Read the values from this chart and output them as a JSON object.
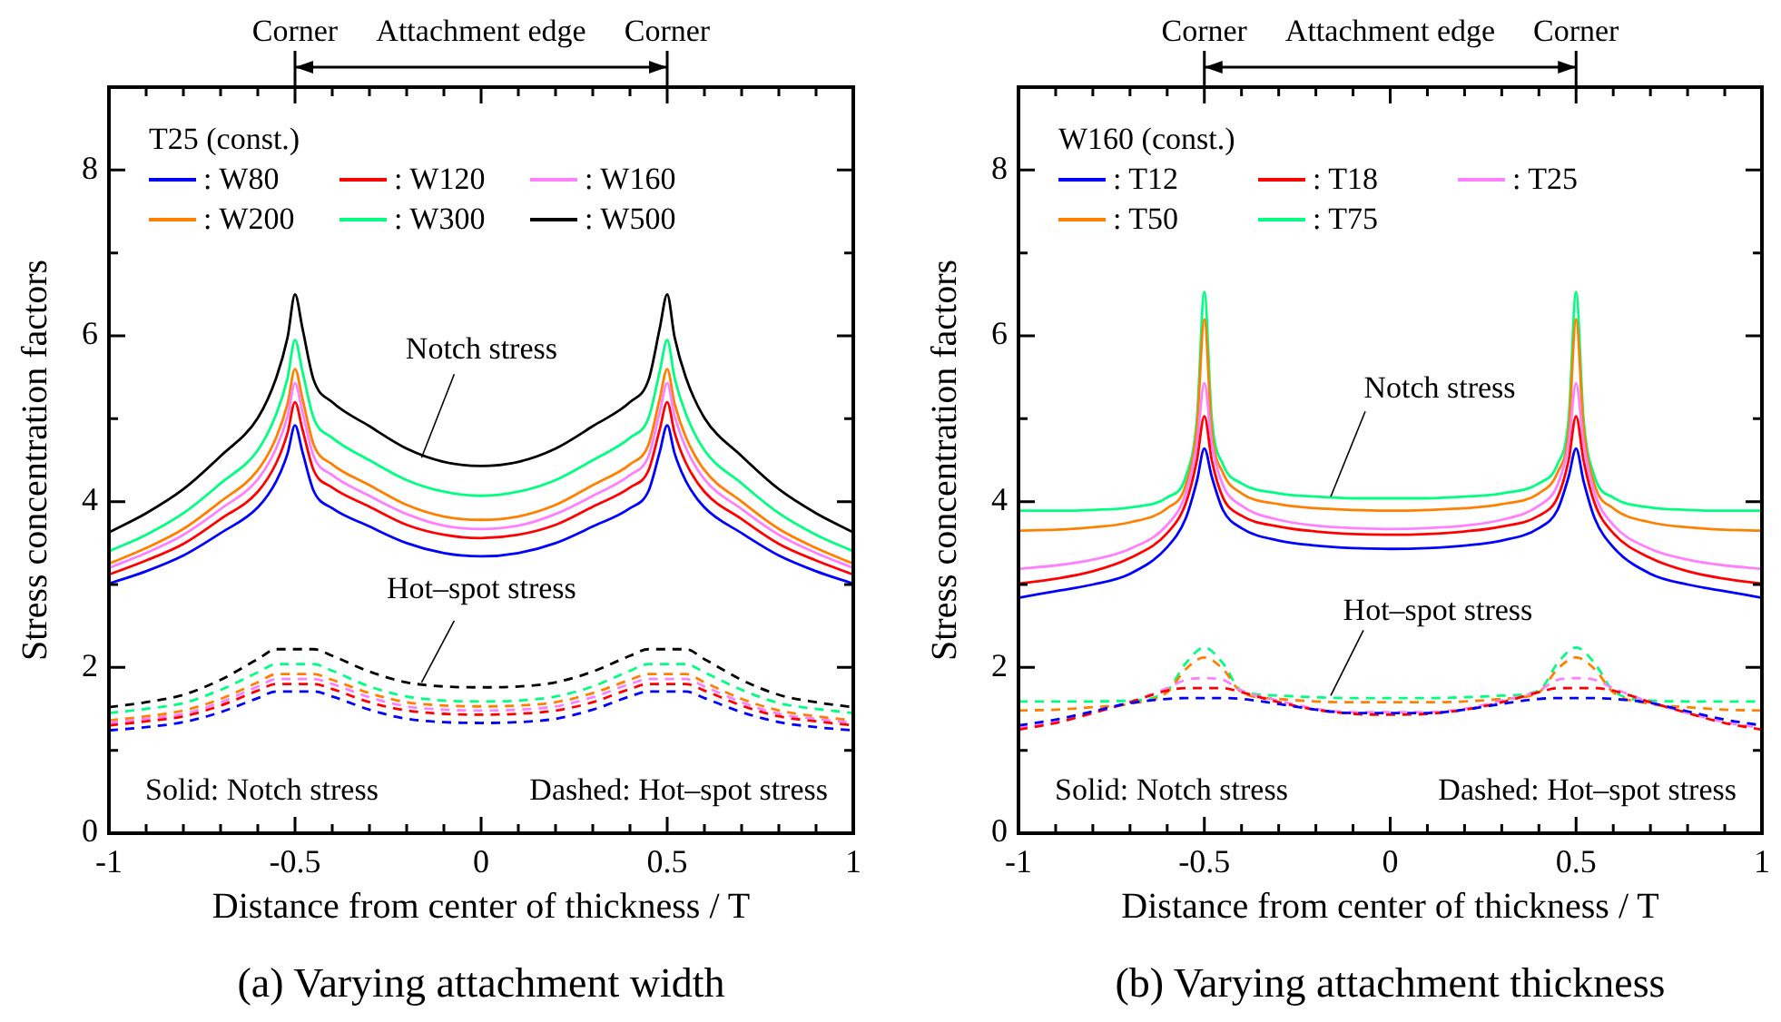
{
  "chart_data": [
    {
      "type": "line",
      "title": "(a) Varying attachment width",
      "xlabel": "Distance from center of thickness / T",
      "ylabel": "Stress concentration factors",
      "legend_title": "T25 (const.)",
      "legend": "top left",
      "marker": "none",
      "xlim": [
        -1,
        1
      ],
      "xticks": [
        -1,
        {
          "value": -0.9,
          "label": null
        },
        {
          "value": -0.8,
          "label": null
        },
        {
          "value": -0.7,
          "label": null
        },
        {
          "value": -0.6,
          "label": null
        },
        -0.5,
        {
          "value": -0.4,
          "label": null
        },
        {
          "value": -0.3,
          "label": null
        },
        {
          "value": -0.2,
          "label": null
        },
        {
          "value": -0.1,
          "label": null
        },
        0,
        {
          "value": 0.1,
          "label": null
        },
        {
          "value": 0.2,
          "label": null
        },
        {
          "value": 0.3,
          "label": null
        },
        {
          "value": 0.4,
          "label": null
        },
        0.5,
        {
          "value": 0.6,
          "label": null
        },
        {
          "value": 0.7,
          "label": null
        },
        {
          "value": 0.8,
          "label": null
        },
        {
          "value": 0.9,
          "label": null
        },
        1
      ],
      "ylim": [
        0,
        9
      ],
      "yticks": [
        0,
        {
          "value": 1,
          "label": null
        },
        2,
        {
          "value": 3,
          "label": null
        },
        4,
        {
          "value": 5,
          "label": null
        },
        6,
        {
          "value": 7,
          "label": null
        },
        8,
        {
          "value": 9,
          "label": null
        }
      ],
      "annotations": [
        {
          "text": "Corner",
          "x": -0.5
        },
        "Attachment edge",
        {
          "text": "Corner",
          "x": 0.5
        },
        {
          "text": "Notch stress",
          "x": -0.16,
          "y": 4.53
        },
        {
          "text": "Hot–spot stress",
          "x": -0.16,
          "y": 1.82
        },
        "Solid: Notch stress",
        "Dashed: Hot–spot stress"
      ],
      "series": [
        {
          "name": ": W80",
          "color": "#0000ff",
          "line_style": "solid",
          "x": [
            -1,
            -0.9,
            -0.8,
            -0.7,
            -0.6,
            -0.55,
            -0.52,
            -0.5,
            -0.48,
            -0.45,
            -0.4,
            -0.3,
            -0.2,
            -0.1,
            0,
            0.1,
            0.2,
            0.3,
            0.4,
            0.45,
            0.48,
            0.5,
            0.52,
            0.55,
            0.6,
            0.7,
            0.8,
            0.9,
            1
          ],
          "values": [
            3.01,
            3.16,
            3.35,
            3.62,
            3.93,
            4.25,
            4.58,
            4.92,
            4.6,
            4.13,
            3.92,
            3.7,
            3.5,
            3.38,
            3.34,
            3.38,
            3.5,
            3.7,
            3.92,
            4.13,
            4.6,
            4.92,
            4.58,
            4.25,
            3.93,
            3.62,
            3.35,
            3.16,
            3.01
          ]
        },
        {
          "name": ": W120",
          "color": "#ff0000",
          "line_style": "solid",
          "x": [
            -1,
            -0.9,
            -0.8,
            -0.7,
            -0.6,
            -0.55,
            -0.52,
            -0.5,
            -0.48,
            -0.45,
            -0.4,
            -0.3,
            -0.2,
            -0.1,
            0,
            0.1,
            0.2,
            0.3,
            0.4,
            0.45,
            0.48,
            0.5,
            0.52,
            0.55,
            0.6,
            0.7,
            0.8,
            0.9,
            1
          ],
          "values": [
            3.12,
            3.29,
            3.49,
            3.79,
            4.12,
            4.47,
            4.83,
            5.2,
            4.87,
            4.38,
            4.17,
            3.94,
            3.72,
            3.6,
            3.56,
            3.6,
            3.72,
            3.94,
            4.17,
            4.38,
            4.87,
            5.2,
            4.83,
            4.47,
            4.12,
            3.79,
            3.49,
            3.29,
            3.12
          ]
        },
        {
          "name": ": W160",
          "color": "#ff80ff",
          "line_style": "solid",
          "x": [
            -1,
            -0.9,
            -0.8,
            -0.7,
            -0.6,
            -0.55,
            -0.52,
            -0.5,
            -0.48,
            -0.45,
            -0.4,
            -0.3,
            -0.2,
            -0.1,
            0,
            0.1,
            0.2,
            0.3,
            0.4,
            0.45,
            0.48,
            0.5,
            0.52,
            0.55,
            0.6,
            0.7,
            0.8,
            0.9,
            1
          ],
          "values": [
            3.2,
            3.38,
            3.6,
            3.91,
            4.27,
            4.65,
            5.03,
            5.43,
            5.08,
            4.55,
            4.32,
            4.07,
            3.85,
            3.71,
            3.67,
            3.71,
            3.85,
            4.07,
            4.32,
            4.55,
            5.08,
            5.43,
            5.03,
            4.65,
            4.27,
            3.91,
            3.6,
            3.38,
            3.2
          ]
        },
        {
          "name": ": W200",
          "color": "#ff8000",
          "line_style": "solid",
          "x": [
            -1,
            -0.9,
            -0.8,
            -0.7,
            -0.6,
            -0.55,
            -0.52,
            -0.5,
            -0.48,
            -0.45,
            -0.4,
            -0.3,
            -0.2,
            -0.1,
            0,
            0.1,
            0.2,
            0.3,
            0.4,
            0.45,
            0.48,
            0.5,
            0.52,
            0.55,
            0.6,
            0.7,
            0.8,
            0.9,
            1
          ],
          "values": [
            3.25,
            3.44,
            3.67,
            4.0,
            4.38,
            4.78,
            5.18,
            5.6,
            5.24,
            4.69,
            4.45,
            4.2,
            3.96,
            3.82,
            3.78,
            3.82,
            3.96,
            4.2,
            4.45,
            4.69,
            5.24,
            5.6,
            5.18,
            4.78,
            4.38,
            4.0,
            3.67,
            3.44,
            3.25
          ]
        },
        {
          "name": ": W300",
          "color": "#00ff80",
          "line_style": "solid",
          "x": [
            -1,
            -0.9,
            -0.8,
            -0.7,
            -0.6,
            -0.55,
            -0.52,
            -0.5,
            -0.48,
            -0.45,
            -0.4,
            -0.3,
            -0.2,
            -0.1,
            0,
            0.1,
            0.2,
            0.3,
            0.4,
            0.45,
            0.48,
            0.5,
            0.52,
            0.55,
            0.6,
            0.7,
            0.8,
            0.9,
            1
          ],
          "values": [
            3.4,
            3.6,
            3.86,
            4.22,
            4.62,
            5.06,
            5.49,
            5.95,
            5.57,
            5.01,
            4.77,
            4.5,
            4.26,
            4.12,
            4.07,
            4.12,
            4.26,
            4.5,
            4.77,
            5.01,
            5.57,
            5.95,
            5.49,
            5.06,
            4.62,
            4.22,
            3.86,
            3.6,
            3.4
          ]
        },
        {
          "name": ": W500",
          "color": "#000000",
          "line_style": "solid",
          "x": [
            -1,
            -0.9,
            -0.8,
            -0.7,
            -0.6,
            -0.55,
            -0.52,
            -0.5,
            -0.48,
            -0.45,
            -0.4,
            -0.3,
            -0.2,
            -0.1,
            0,
            0.1,
            0.2,
            0.3,
            0.4,
            0.45,
            0.48,
            0.5,
            0.52,
            0.55,
            0.6,
            0.7,
            0.8,
            0.9,
            1
          ],
          "values": [
            3.63,
            3.86,
            4.15,
            4.55,
            5.01,
            5.5,
            5.98,
            6.5,
            6.09,
            5.47,
            5.2,
            4.91,
            4.64,
            4.48,
            4.43,
            4.48,
            4.64,
            4.91,
            5.2,
            5.47,
            6.09,
            6.5,
            5.98,
            5.5,
            5.01,
            4.55,
            4.15,
            3.86,
            3.63
          ]
        },
        {
          "color": "#0000ff",
          "line_style": "dashed",
          "x": [
            -1,
            -0.9,
            -0.8,
            -0.7,
            -0.6,
            -0.55,
            -0.45,
            -0.4,
            -0.3,
            -0.2,
            -0.1,
            0,
            0.1,
            0.2,
            0.3,
            0.4,
            0.45,
            0.55,
            0.6,
            0.7,
            0.8,
            0.9,
            1
          ],
          "values": [
            1.24,
            1.28,
            1.34,
            1.46,
            1.63,
            1.71,
            1.71,
            1.65,
            1.49,
            1.38,
            1.34,
            1.33,
            1.34,
            1.38,
            1.49,
            1.65,
            1.71,
            1.71,
            1.63,
            1.46,
            1.34,
            1.28,
            1.24
          ]
        },
        {
          "color": "#ff0000",
          "line_style": "dashed",
          "x": [
            -1,
            -0.9,
            -0.8,
            -0.7,
            -0.6,
            -0.55,
            -0.45,
            -0.4,
            -0.3,
            -0.2,
            -0.1,
            0,
            0.1,
            0.2,
            0.3,
            0.4,
            0.45,
            0.55,
            0.6,
            0.7,
            0.8,
            0.9,
            1
          ],
          "values": [
            1.3,
            1.35,
            1.41,
            1.54,
            1.72,
            1.8,
            1.8,
            1.74,
            1.58,
            1.48,
            1.44,
            1.43,
            1.44,
            1.48,
            1.58,
            1.74,
            1.8,
            1.8,
            1.72,
            1.54,
            1.41,
            1.35,
            1.3
          ]
        },
        {
          "color": "#ff80ff",
          "line_style": "dashed",
          "x": [
            -1,
            -0.9,
            -0.8,
            -0.7,
            -0.6,
            -0.55,
            -0.45,
            -0.4,
            -0.3,
            -0.2,
            -0.1,
            0,
            0.1,
            0.2,
            0.3,
            0.4,
            0.45,
            0.55,
            0.6,
            0.7,
            0.8,
            0.9,
            1
          ],
          "values": [
            1.33,
            1.38,
            1.44,
            1.58,
            1.77,
            1.86,
            1.86,
            1.8,
            1.64,
            1.53,
            1.49,
            1.48,
            1.49,
            1.53,
            1.64,
            1.8,
            1.86,
            1.86,
            1.77,
            1.58,
            1.44,
            1.38,
            1.33
          ]
        },
        {
          "color": "#ff8000",
          "line_style": "dashed",
          "x": [
            -1,
            -0.9,
            -0.8,
            -0.7,
            -0.6,
            -0.55,
            -0.45,
            -0.4,
            -0.3,
            -0.2,
            -0.1,
            0,
            0.1,
            0.2,
            0.3,
            0.4,
            0.45,
            0.55,
            0.6,
            0.7,
            0.8,
            0.9,
            1
          ],
          "values": [
            1.36,
            1.41,
            1.48,
            1.62,
            1.82,
            1.92,
            1.92,
            1.85,
            1.69,
            1.58,
            1.54,
            1.53,
            1.54,
            1.58,
            1.69,
            1.85,
            1.92,
            1.92,
            1.82,
            1.62,
            1.48,
            1.41,
            1.36
          ]
        },
        {
          "color": "#00ff80",
          "line_style": "dashed",
          "x": [
            -1,
            -0.9,
            -0.8,
            -0.7,
            -0.6,
            -0.55,
            -0.45,
            -0.4,
            -0.3,
            -0.2,
            -0.1,
            0,
            0.1,
            0.2,
            0.3,
            0.4,
            0.45,
            0.55,
            0.6,
            0.7,
            0.8,
            0.9,
            1
          ],
          "values": [
            1.45,
            1.5,
            1.57,
            1.73,
            1.94,
            2.04,
            2.04,
            1.96,
            1.77,
            1.65,
            1.6,
            1.59,
            1.6,
            1.65,
            1.77,
            1.96,
            2.04,
            2.04,
            1.94,
            1.73,
            1.57,
            1.5,
            1.45
          ]
        },
        {
          "color": "#000000",
          "line_style": "dashed",
          "x": [
            -1,
            -0.9,
            -0.8,
            -0.7,
            -0.6,
            -0.55,
            -0.45,
            -0.4,
            -0.3,
            -0.2,
            -0.1,
            0,
            0.1,
            0.2,
            0.3,
            0.4,
            0.45,
            0.55,
            0.6,
            0.7,
            0.8,
            0.9,
            1
          ],
          "values": [
            1.52,
            1.58,
            1.67,
            1.85,
            2.1,
            2.22,
            2.22,
            2.14,
            1.95,
            1.82,
            1.77,
            1.76,
            1.77,
            1.82,
            1.95,
            2.14,
            2.22,
            2.22,
            2.1,
            1.85,
            1.67,
            1.58,
            1.52
          ]
        }
      ]
    },
    {
      "type": "line",
      "title": "(b) Varying attachment thickness",
      "xlabel": "Distance from center of thickness / T",
      "ylabel": "Stress concentration factors",
      "legend_title": "W160 (const.)",
      "legend": "top left",
      "marker": "none",
      "xlim": [
        -1,
        1
      ],
      "xticks": [
        -1,
        {
          "value": -0.9,
          "label": null
        },
        {
          "value": -0.8,
          "label": null
        },
        {
          "value": -0.7,
          "label": null
        },
        {
          "value": -0.6,
          "label": null
        },
        -0.5,
        {
          "value": -0.4,
          "label": null
        },
        {
          "value": -0.3,
          "label": null
        },
        {
          "value": -0.2,
          "label": null
        },
        {
          "value": -0.1,
          "label": null
        },
        0,
        {
          "value": 0.1,
          "label": null
        },
        {
          "value": 0.2,
          "label": null
        },
        {
          "value": 0.3,
          "label": null
        },
        {
          "value": 0.4,
          "label": null
        },
        0.5,
        {
          "value": 0.6,
          "label": null
        },
        {
          "value": 0.7,
          "label": null
        },
        {
          "value": 0.8,
          "label": null
        },
        {
          "value": 0.9,
          "label": null
        },
        1
      ],
      "ylim": [
        0,
        9
      ],
      "yticks": [
        0,
        {
          "value": 1,
          "label": null
        },
        2,
        {
          "value": 3,
          "label": null
        },
        4,
        {
          "value": 5,
          "label": null
        },
        6,
        {
          "value": 7,
          "label": null
        },
        8,
        {
          "value": 9,
          "label": null
        }
      ],
      "annotations": [
        {
          "text": "Corner",
          "x": -0.5
        },
        "Attachment edge",
        {
          "text": "Corner",
          "x": 0.5
        },
        {
          "text": "Notch stress",
          "x": -0.16,
          "y": 4.06
        },
        {
          "text": "Hot–spot stress",
          "x": -0.16,
          "y": 1.66
        },
        "Solid: Notch stress",
        "Dashed: Hot–spot stress"
      ],
      "series": [
        {
          "name": ": T12",
          "color": "#0000ff",
          "line_style": "solid",
          "x": [
            -1,
            -0.9,
            -0.8,
            -0.7,
            -0.6,
            -0.55,
            -0.52,
            -0.5,
            -0.48,
            -0.45,
            -0.4,
            -0.3,
            -0.2,
            -0.1,
            0,
            0.1,
            0.2,
            0.3,
            0.4,
            0.45,
            0.48,
            0.5,
            0.52,
            0.55,
            0.6,
            0.7,
            0.8,
            0.9,
            1
          ],
          "values": [
            2.84,
            2.92,
            3.0,
            3.13,
            3.45,
            3.8,
            4.25,
            4.64,
            4.3,
            3.9,
            3.68,
            3.53,
            3.47,
            3.44,
            3.43,
            3.44,
            3.47,
            3.53,
            3.68,
            3.9,
            4.3,
            4.64,
            4.25,
            3.8,
            3.45,
            3.13,
            3.0,
            2.92,
            2.84
          ]
        },
        {
          "name": ": T18",
          "color": "#ff0000",
          "line_style": "solid",
          "x": [
            -1,
            -0.9,
            -0.8,
            -0.7,
            -0.6,
            -0.55,
            -0.52,
            -0.5,
            -0.48,
            -0.45,
            -0.4,
            -0.3,
            -0.2,
            -0.1,
            0,
            0.1,
            0.2,
            0.3,
            0.4,
            0.45,
            0.48,
            0.5,
            0.52,
            0.55,
            0.6,
            0.7,
            0.8,
            0.9,
            1
          ],
          "values": [
            3.01,
            3.07,
            3.16,
            3.32,
            3.62,
            3.98,
            4.5,
            5.03,
            4.5,
            4.05,
            3.83,
            3.7,
            3.64,
            3.61,
            3.6,
            3.61,
            3.64,
            3.7,
            3.83,
            4.05,
            4.5,
            5.03,
            4.5,
            3.98,
            3.62,
            3.32,
            3.16,
            3.07,
            3.01
          ]
        },
        {
          "name": ": T25",
          "color": "#ff80ff",
          "line_style": "solid",
          "x": [
            -1,
            -0.9,
            -0.8,
            -0.7,
            -0.6,
            -0.55,
            -0.52,
            -0.5,
            -0.48,
            -0.45,
            -0.4,
            -0.3,
            -0.2,
            -0.1,
            0,
            0.1,
            0.2,
            0.3,
            0.4,
            0.45,
            0.48,
            0.5,
            0.52,
            0.55,
            0.6,
            0.7,
            0.8,
            0.9,
            1
          ],
          "values": [
            3.19,
            3.23,
            3.3,
            3.43,
            3.72,
            4.1,
            4.7,
            5.43,
            4.7,
            4.2,
            3.95,
            3.78,
            3.71,
            3.68,
            3.67,
            3.68,
            3.71,
            3.78,
            3.95,
            4.2,
            4.7,
            5.43,
            4.7,
            4.1,
            3.72,
            3.43,
            3.3,
            3.23,
            3.19
          ]
        },
        {
          "name": ": T50",
          "color": "#ff8000",
          "line_style": "solid",
          "x": [
            -1,
            -0.9,
            -0.8,
            -0.7,
            -0.6,
            -0.55,
            -0.52,
            -0.5,
            -0.48,
            -0.45,
            -0.4,
            -0.3,
            -0.2,
            -0.1,
            0,
            0.1,
            0.2,
            0.3,
            0.4,
            0.45,
            0.48,
            0.5,
            0.52,
            0.55,
            0.6,
            0.7,
            0.8,
            0.9,
            1
          ],
          "values": [
            3.65,
            3.66,
            3.69,
            3.75,
            3.92,
            4.2,
            4.9,
            6.2,
            4.85,
            4.35,
            4.1,
            3.97,
            3.92,
            3.9,
            3.89,
            3.9,
            3.92,
            3.97,
            4.1,
            4.35,
            4.85,
            6.2,
            4.9,
            4.2,
            3.92,
            3.75,
            3.69,
            3.66,
            3.65
          ]
        },
        {
          "name": ": T75",
          "color": "#00ff80",
          "line_style": "solid",
          "x": [
            -1,
            -0.9,
            -0.8,
            -0.7,
            -0.6,
            -0.55,
            -0.52,
            -0.5,
            -0.48,
            -0.45,
            -0.4,
            -0.3,
            -0.2,
            -0.1,
            0,
            0.1,
            0.2,
            0.3,
            0.4,
            0.45,
            0.48,
            0.5,
            0.52,
            0.55,
            0.6,
            0.7,
            0.8,
            0.9,
            1
          ],
          "values": [
            3.89,
            3.89,
            3.9,
            3.93,
            4.05,
            4.3,
            5.0,
            6.53,
            5.0,
            4.45,
            4.22,
            4.1,
            4.06,
            4.04,
            4.04,
            4.04,
            4.06,
            4.1,
            4.22,
            4.45,
            5.0,
            6.53,
            5.0,
            4.3,
            4.05,
            3.93,
            3.9,
            3.89,
            3.89
          ]
        },
        {
          "color": "#0000ff",
          "line_style": "dashed",
          "x": [
            -1,
            -0.9,
            -0.8,
            -0.7,
            -0.6,
            -0.55,
            -0.5,
            -0.45,
            -0.4,
            -0.3,
            -0.2,
            -0.1,
            0,
            0.1,
            0.2,
            0.3,
            0.4,
            0.45,
            0.5,
            0.55,
            0.6,
            0.7,
            0.8,
            0.9,
            1
          ],
          "values": [
            1.3,
            1.37,
            1.47,
            1.57,
            1.62,
            1.63,
            1.63,
            1.63,
            1.62,
            1.56,
            1.49,
            1.45,
            1.45,
            1.45,
            1.49,
            1.56,
            1.62,
            1.63,
            1.63,
            1.63,
            1.62,
            1.57,
            1.47,
            1.37,
            1.3
          ]
        },
        {
          "color": "#ff0000",
          "line_style": "dashed",
          "x": [
            -1,
            -0.9,
            -0.8,
            -0.7,
            -0.6,
            -0.55,
            -0.5,
            -0.45,
            -0.4,
            -0.3,
            -0.2,
            -0.1,
            0,
            0.1,
            0.2,
            0.3,
            0.4,
            0.45,
            0.5,
            0.55,
            0.6,
            0.7,
            0.8,
            0.9,
            1
          ],
          "values": [
            1.25,
            1.33,
            1.45,
            1.58,
            1.72,
            1.75,
            1.75,
            1.75,
            1.7,
            1.58,
            1.49,
            1.44,
            1.43,
            1.44,
            1.49,
            1.58,
            1.7,
            1.75,
            1.75,
            1.75,
            1.72,
            1.58,
            1.45,
            1.33,
            1.25
          ]
        },
        {
          "color": "#ff80ff",
          "line_style": "dashed",
          "x": [
            -1,
            -0.9,
            -0.8,
            -0.7,
            -0.6,
            -0.55,
            -0.5,
            -0.45,
            -0.4,
            -0.3,
            -0.2,
            -0.1,
            0,
            0.1,
            0.2,
            0.3,
            0.4,
            0.45,
            0.5,
            0.55,
            0.6,
            0.7,
            0.8,
            0.9,
            1
          ],
          "values": [
            1.27,
            1.34,
            1.45,
            1.58,
            1.75,
            1.85,
            1.87,
            1.85,
            1.72,
            1.6,
            1.5,
            1.46,
            1.46,
            1.46,
            1.5,
            1.6,
            1.72,
            1.85,
            1.87,
            1.85,
            1.75,
            1.58,
            1.45,
            1.34,
            1.27
          ]
        },
        {
          "color": "#ff8000",
          "line_style": "dashed",
          "x": [
            -1,
            -0.9,
            -0.8,
            -0.7,
            -0.6,
            -0.55,
            -0.5,
            -0.45,
            -0.4,
            -0.3,
            -0.2,
            -0.1,
            0,
            0.1,
            0.2,
            0.3,
            0.4,
            0.45,
            0.5,
            0.55,
            0.6,
            0.7,
            0.8,
            0.9,
            1
          ],
          "values": [
            1.48,
            1.49,
            1.52,
            1.56,
            1.7,
            1.98,
            2.12,
            1.98,
            1.7,
            1.62,
            1.59,
            1.58,
            1.58,
            1.58,
            1.59,
            1.62,
            1.7,
            1.98,
            2.12,
            1.98,
            1.7,
            1.56,
            1.52,
            1.49,
            1.48
          ]
        },
        {
          "color": "#00ff80",
          "line_style": "dashed",
          "x": [
            -1,
            -0.9,
            -0.8,
            -0.7,
            -0.6,
            -0.55,
            -0.5,
            -0.45,
            -0.4,
            -0.3,
            -0.2,
            -0.1,
            0,
            0.1,
            0.2,
            0.3,
            0.4,
            0.45,
            0.5,
            0.55,
            0.6,
            0.7,
            0.8,
            0.9,
            1
          ],
          "values": [
            1.59,
            1.59,
            1.59,
            1.6,
            1.72,
            2.05,
            2.24,
            2.05,
            1.72,
            1.66,
            1.64,
            1.63,
            1.63,
            1.63,
            1.64,
            1.66,
            1.72,
            2.05,
            2.24,
            2.05,
            1.72,
            1.6,
            1.59,
            1.59,
            1.59
          ]
        }
      ]
    }
  ]
}
